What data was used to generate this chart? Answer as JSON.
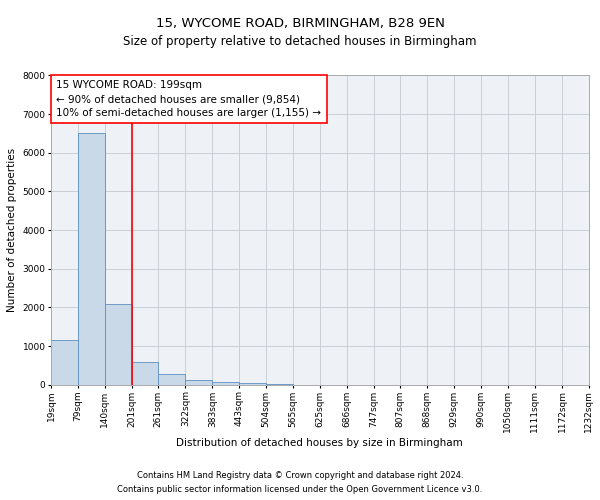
{
  "title": "15, WYCOME ROAD, BIRMINGHAM, B28 9EN",
  "subtitle": "Size of property relative to detached houses in Birmingham",
  "xlabel": "Distribution of detached houses by size in Birmingham",
  "ylabel": "Number of detached properties",
  "footnote1": "Contains HM Land Registry data © Crown copyright and database right 2024.",
  "footnote2": "Contains public sector information licensed under the Open Government Licence v3.0.",
  "annotation_line1": "15 WYCOME ROAD: 199sqm",
  "annotation_line2": "← 90% of detached houses are smaller (9,854)",
  "annotation_line3": "10% of semi-detached houses are larger (1,155) →",
  "bar_left_edges": [
    19,
    79,
    140,
    201,
    261,
    322,
    383,
    443,
    504,
    565,
    625,
    686,
    747,
    807,
    868,
    929,
    990,
    1050,
    1111,
    1172
  ],
  "bar_widths": [
    60,
    61,
    61,
    60,
    61,
    61,
    60,
    61,
    61,
    60,
    61,
    61,
    60,
    61,
    61,
    61,
    60,
    61,
    61,
    60
  ],
  "bar_heights": [
    1150,
    6500,
    2100,
    600,
    280,
    130,
    80,
    50,
    30,
    0,
    0,
    0,
    0,
    0,
    0,
    0,
    0,
    0,
    0,
    0
  ],
  "tick_labels": [
    "19sqm",
    "79sqm",
    "140sqm",
    "201sqm",
    "261sqm",
    "322sqm",
    "383sqm",
    "443sqm",
    "504sqm",
    "565sqm",
    "625sqm",
    "686sqm",
    "747sqm",
    "807sqm",
    "868sqm",
    "929sqm",
    "990sqm",
    "1050sqm",
    "1111sqm",
    "1172sqm",
    "1232sqm"
  ],
  "tick_positions": [
    19,
    79,
    140,
    201,
    261,
    322,
    383,
    443,
    504,
    565,
    625,
    686,
    747,
    807,
    868,
    929,
    990,
    1050,
    1111,
    1172,
    1232
  ],
  "ylim": [
    0,
    8000
  ],
  "xlim": [
    19,
    1232
  ],
  "bar_color": "#c9d9e8",
  "bar_edge_color": "#5a8fc0",
  "red_line_x": 201,
  "grid_color": "#c8cfd8",
  "bg_color": "#eef2f7",
  "title_fontsize": 9.5,
  "subtitle_fontsize": 8.5,
  "annotation_fontsize": 7.5,
  "axis_label_fontsize": 7.5,
  "tick_fontsize": 6.5,
  "footnote_fontsize": 6.0
}
